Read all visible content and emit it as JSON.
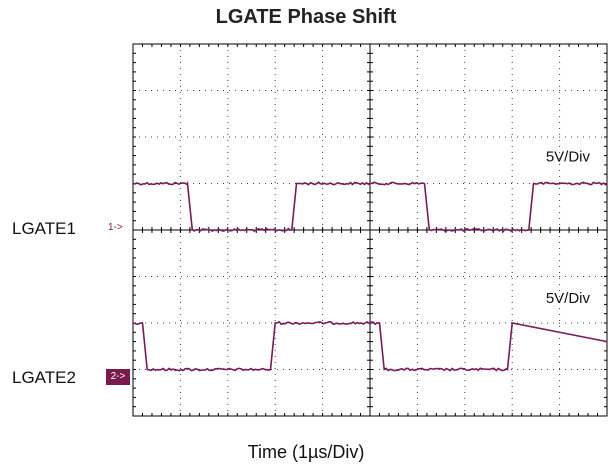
{
  "chart_data": {
    "type": "line",
    "title": "LGATE Phase Shift",
    "xlabel": "Time (1µs/Div)",
    "ylabel": "",
    "x_divisions": 10,
    "y_divisions": 8,
    "xlim": [
      0,
      10
    ],
    "ylim": [
      -4,
      4
    ],
    "grid": true,
    "series": [
      {
        "name": "LGATE1",
        "marker_text": "1->",
        "scale_label": "5V/Div",
        "color": "#7a1a5a",
        "low_div": 0,
        "high_div": 1.0,
        "x": [
          0.0,
          1.15,
          1.25,
          3.35,
          3.45,
          6.15,
          6.25,
          8.35,
          8.45,
          10.0
        ],
        "levels": [
          1,
          1,
          0,
          0,
          1,
          1,
          0,
          0,
          1,
          1
        ]
      },
      {
        "name": "LGATE2",
        "marker_text": "2->",
        "scale_label": "5V/Div",
        "color": "#7a1a5a",
        "low_div": -3.0,
        "high_div": -2.0,
        "x": [
          0.0,
          0.2,
          0.3,
          2.9,
          3.0,
          5.2,
          5.3,
          7.9,
          8.0,
          10.0
        ],
        "levels": [
          1,
          1,
          0,
          0,
          1,
          1,
          0,
          0,
          1,
          0.6
        ]
      }
    ]
  }
}
